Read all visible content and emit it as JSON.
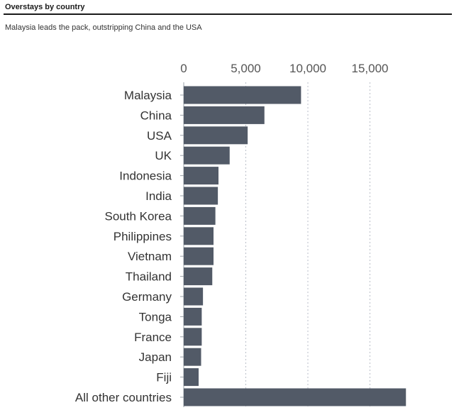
{
  "title": "Overstays by country",
  "subtitle": "Malaysia leads the pack, outstripping China and the USA",
  "colors": {
    "bar": "#525a67",
    "grid": "#b9bec8",
    "axis": "#9aa0a8"
  },
  "chart_data": {
    "type": "bar",
    "orientation": "horizontal",
    "title": "Overstays by country",
    "subtitle": "Malaysia leads the pack, outstripping China and the USA",
    "xlabel": "",
    "ylabel": "",
    "xlim": [
      0,
      18000
    ],
    "x_ticks": [
      0,
      5000,
      10000,
      15000
    ],
    "x_tick_labels": [
      "0",
      "5,000",
      "10,000",
      "15,000"
    ],
    "tick_position": "top",
    "grid": "vertical dotted",
    "legend": "none",
    "categories": [
      "Malaysia",
      "China",
      "USA",
      "UK",
      "Indonesia",
      "India",
      "South Korea",
      "Philippines",
      "Vietnam",
      "Thailand",
      "Germany",
      "Tonga",
      "France",
      "Japan",
      "Fiji",
      "All other countries"
    ],
    "values": [
      9450,
      6500,
      5150,
      3700,
      2800,
      2750,
      2550,
      2400,
      2400,
      2300,
      1550,
      1450,
      1450,
      1400,
      1200,
      17900
    ]
  }
}
